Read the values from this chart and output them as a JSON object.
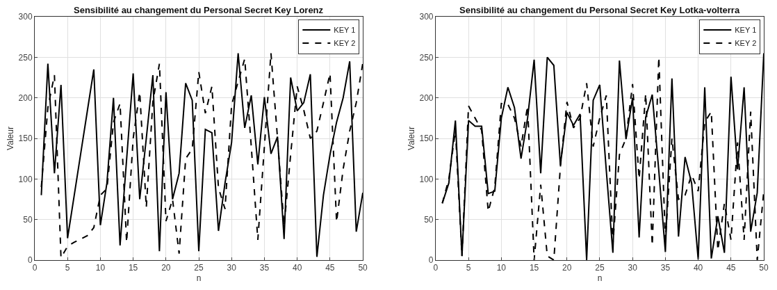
{
  "chart_data": [
    {
      "type": "line",
      "title": "Sensibilité au changement du Personal Secret Key Lorenz",
      "xlabel": "n",
      "ylabel": "Valeur",
      "x": [
        1,
        2,
        3,
        4,
        5,
        6,
        7,
        8,
        9,
        10,
        11,
        12,
        13,
        14,
        15,
        16,
        17,
        18,
        19,
        20,
        21,
        22,
        23,
        24,
        25,
        26,
        27,
        28,
        29,
        30,
        31,
        32,
        33,
        34,
        35,
        36,
        37,
        38,
        39,
        40,
        41,
        42,
        43,
        44,
        45,
        46,
        47,
        48,
        49,
        50
      ],
      "xlim": [
        0,
        50
      ],
      "xticks": [
        0,
        5,
        10,
        15,
        20,
        25,
        30,
        35,
        40,
        45,
        50
      ],
      "ylim": [
        0,
        300
      ],
      "yticks": [
        0,
        50,
        100,
        150,
        200,
        250,
        300
      ],
      "grid": true,
      "legend": "top right",
      "series": [
        {
          "name": "KEY 1",
          "color": "#000000",
          "line_style": "solid",
          "values": [
            80,
            242,
            107,
            216,
            27,
            79,
            131,
            183,
            235,
            43,
            95,
            200,
            18,
            124,
            230,
            75,
            150,
            228,
            11,
            207,
            75,
            107,
            218,
            197,
            11,
            161,
            157,
            36,
            95,
            145,
            255,
            163,
            203,
            118,
            201,
            131,
            152,
            26,
            225,
            184,
            194,
            229,
            4,
            80,
            130,
            170,
            200,
            245,
            35,
            83
          ]
        },
        {
          "name": "KEY 2",
          "color": "#000000",
          "line_style": "dashed",
          "values": [
            90,
            188,
            228,
            3,
            17,
            22,
            26,
            30,
            40,
            80,
            88,
            170,
            193,
            22,
            150,
            207,
            65,
            195,
            242,
            48,
            75,
            8,
            125,
            137,
            232,
            181,
            214,
            89,
            63,
            191,
            220,
            248,
            140,
            25,
            140,
            255,
            150,
            42,
            130,
            214,
            185,
            150,
            159,
            194,
            230,
            47,
            112,
            159,
            194,
            243
          ]
        }
      ]
    },
    {
      "type": "line",
      "title": "Sensibilité au changement du Personal Secret Key Lotka-volterra",
      "xlabel": "n",
      "ylabel": "Valeur",
      "x": [
        1,
        2,
        3,
        4,
        5,
        6,
        7,
        8,
        9,
        10,
        11,
        12,
        13,
        14,
        15,
        16,
        17,
        18,
        19,
        20,
        21,
        22,
        23,
        24,
        25,
        26,
        27,
        28,
        29,
        30,
        31,
        32,
        33,
        34,
        35,
        36,
        37,
        38,
        39,
        40,
        41,
        42,
        43,
        44,
        45,
        46,
        47,
        48,
        49,
        50
      ],
      "xlim": [
        0,
        50
      ],
      "xticks": [
        0,
        5,
        10,
        15,
        20,
        25,
        30,
        35,
        40,
        45,
        50
      ],
      "ylim": [
        0,
        300
      ],
      "yticks": [
        0,
        50,
        100,
        150,
        200,
        250,
        300
      ],
      "grid": true,
      "legend": "top right",
      "series": [
        {
          "name": "KEY 1",
          "color": "#000000",
          "line_style": "solid",
          "values": [
            70,
            95,
            172,
            5,
            172,
            165,
            165,
            82,
            85,
            175,
            213,
            188,
            125,
            175,
            247,
            107,
            250,
            240,
            117,
            182,
            166,
            180,
            0,
            197,
            216,
            110,
            9,
            246,
            149,
            200,
            28,
            176,
            204,
            110,
            10,
            224,
            29,
            127,
            95,
            1,
            213,
            2,
            54,
            9,
            226,
            112,
            213,
            35,
            83,
            255
          ]
        },
        {
          "name": "KEY 2",
          "color": "#000000",
          "line_style": "dashed",
          "values": [
            70,
            100,
            160,
            5,
            190,
            175,
            160,
            60,
            90,
            193,
            192,
            175,
            140,
            190,
            0,
            93,
            5,
            0,
            115,
            195,
            163,
            175,
            218,
            140,
            175,
            203,
            20,
            130,
            150,
            217,
            100,
            205,
            18,
            250,
            25,
            150,
            75,
            80,
            105,
            85,
            170,
            183,
            12,
            70,
            25,
            145,
            25,
            183,
            0,
            85
          ]
        }
      ]
    }
  ]
}
